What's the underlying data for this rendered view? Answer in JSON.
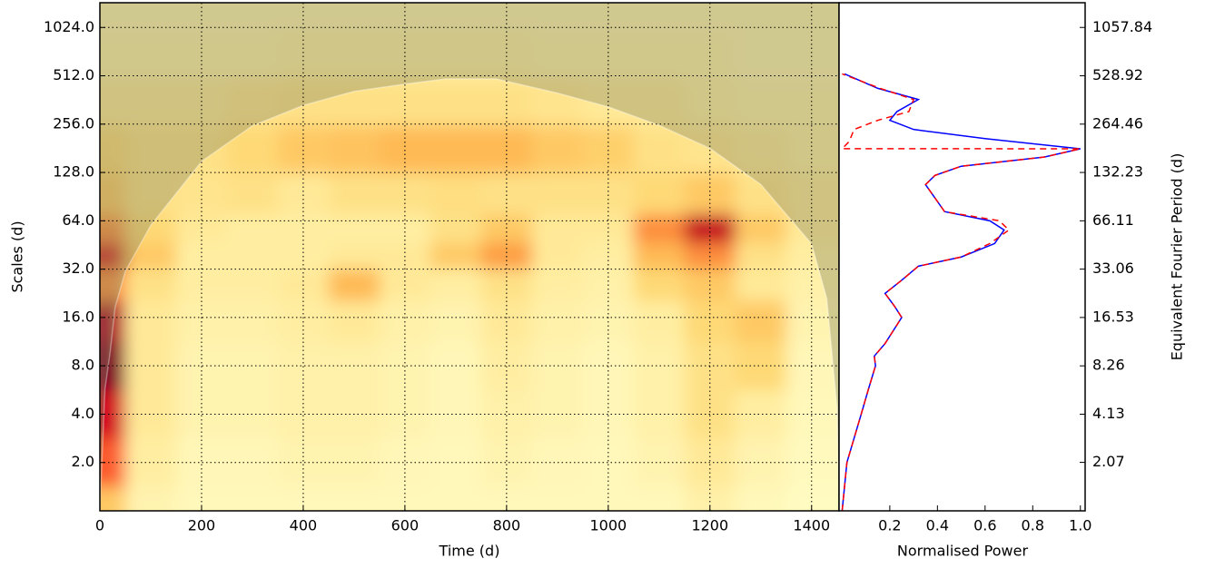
{
  "chart_data": [
    {
      "type": "heatmap",
      "xlabel": "Time (d)",
      "ylabel": "Scales (d)",
      "xlim": [
        0,
        1454
      ],
      "ylim": [
        1,
        1460
      ],
      "log_y": true,
      "grid": true,
      "colormap": "YlOrRd",
      "xticks": [
        0,
        200,
        400,
        600,
        800,
        1000,
        1200,
        1400
      ],
      "yticks": [
        {
          "value": 2,
          "label": "2.0"
        },
        {
          "value": 4,
          "label": "4.0"
        },
        {
          "value": 8,
          "label": "8.0"
        },
        {
          "value": 16,
          "label": "16.0"
        },
        {
          "value": 32,
          "label": "32.0"
        },
        {
          "value": 64,
          "label": "64.0"
        },
        {
          "value": 128,
          "label": "128.0"
        },
        {
          "value": 256,
          "label": "256.0"
        },
        {
          "value": 512,
          "label": "512.0"
        },
        {
          "value": 1024,
          "label": "1024.0"
        }
      ],
      "x": [
        0,
        100,
        200,
        300,
        400,
        500,
        600,
        700,
        800,
        900,
        1000,
        1100,
        1200,
        1300,
        1400
      ],
      "y": [
        1,
        2,
        4,
        8,
        16,
        26,
        40,
        55,
        90,
        180,
        350,
        700,
        1400
      ],
      "values": [
        [
          0.3,
          0.08,
          0.05,
          0.05,
          0.05,
          0.05,
          0.05,
          0.05,
          0.05,
          0.05,
          0.05,
          0.05,
          0.1,
          0.05,
          0.03
        ],
        [
          0.6,
          0.12,
          0.06,
          0.06,
          0.08,
          0.08,
          0.06,
          0.05,
          0.08,
          0.06,
          0.05,
          0.08,
          0.15,
          0.08,
          0.04
        ],
        [
          0.8,
          0.15,
          0.08,
          0.08,
          0.1,
          0.1,
          0.08,
          0.06,
          0.1,
          0.08,
          0.06,
          0.1,
          0.2,
          0.12,
          0.05
        ],
        [
          1.0,
          0.15,
          0.08,
          0.08,
          0.1,
          0.1,
          0.08,
          0.06,
          0.12,
          0.08,
          0.06,
          0.1,
          0.2,
          0.25,
          0.06
        ],
        [
          0.9,
          0.15,
          0.1,
          0.1,
          0.12,
          0.15,
          0.1,
          0.08,
          0.15,
          0.1,
          0.08,
          0.12,
          0.25,
          0.3,
          0.08
        ],
        [
          0.5,
          0.2,
          0.12,
          0.12,
          0.15,
          0.35,
          0.15,
          0.12,
          0.2,
          0.12,
          0.1,
          0.25,
          0.3,
          0.15,
          0.1
        ],
        [
          0.8,
          0.3,
          0.12,
          0.12,
          0.12,
          0.15,
          0.15,
          0.3,
          0.45,
          0.15,
          0.12,
          0.35,
          0.5,
          0.2,
          0.12
        ],
        [
          0.5,
          0.25,
          0.15,
          0.12,
          0.12,
          0.12,
          0.12,
          0.2,
          0.3,
          0.15,
          0.15,
          0.5,
          0.85,
          0.3,
          0.15
        ],
        [
          0.3,
          0.2,
          0.18,
          0.2,
          0.15,
          0.2,
          0.2,
          0.22,
          0.2,
          0.2,
          0.2,
          0.25,
          0.3,
          0.2,
          0.15
        ],
        [
          0.25,
          0.2,
          0.2,
          0.25,
          0.3,
          0.32,
          0.35,
          0.35,
          0.35,
          0.3,
          0.28,
          0.2,
          0.18,
          0.15,
          0.12
        ],
        [
          0.15,
          0.15,
          0.15,
          0.18,
          0.2,
          0.2,
          0.2,
          0.2,
          0.2,
          0.18,
          0.15,
          0.15,
          0.12,
          0.1,
          0.1
        ],
        [
          0.1,
          0.1,
          0.1,
          0.1,
          0.12,
          0.12,
          0.12,
          0.12,
          0.12,
          0.1,
          0.1,
          0.1,
          0.1,
          0.08,
          0.08
        ],
        [
          0.08,
          0.08,
          0.08,
          0.08,
          0.08,
          0.08,
          0.08,
          0.08,
          0.08,
          0.08,
          0.08,
          0.08,
          0.08,
          0.08,
          0.08
        ]
      ],
      "coi": {
        "color": "#8a8a60",
        "x": [
          0,
          10,
          20,
          30,
          50,
          100,
          200,
          300,
          400,
          500,
          600,
          680,
          780,
          900,
          1000,
          1100,
          1200,
          1300,
          1400,
          1430,
          1450,
          1454
        ],
        "y": [
          1,
          5.7,
          9.6,
          18.5,
          31,
          60,
          150,
          250,
          335,
          410,
          455,
          490,
          490,
          400,
          328,
          252,
          181,
          108,
          46,
          21,
          4.4,
          1
        ]
      }
    },
    {
      "type": "line",
      "xlabel": "Normalised Power",
      "y2label": "Equivalent Fourier Period (d)",
      "xlim": [
        -0.013,
        1.02
      ],
      "ylim": [
        1,
        1460
      ],
      "log_y": true,
      "y2lim": [
        1.033,
        1508
      ],
      "xticks": [
        0.2,
        0.4,
        0.6,
        0.8,
        {
          "value": 1,
          "label": "1.0"
        }
      ],
      "y2ticks": [
        2.07,
        4.13,
        8.26,
        16.53,
        33.06,
        66.11,
        132.23,
        264.46,
        528.92,
        1057.84
      ],
      "series": [
        {
          "color": "#0000ff",
          "style": "solid",
          "y": [
            1,
            2,
            4,
            5.7,
            8,
            9.2,
            11,
            16,
            18.8,
            22.6,
            27.3,
            33.4,
            38.1,
            46.2,
            56.1,
            64,
            73,
            88.6,
            107.6,
            122.8,
            140,
            159.8,
            179.8,
            207.9,
            237.2,
            270.6,
            306.5,
            364.5,
            427.5,
            526.2
          ],
          "values": [
            0,
            0.02,
            0.08,
            0.11,
            0.14,
            0.135,
            0.18,
            0.25,
            0.22,
            0.18,
            0.25,
            0.32,
            0.5,
            0.64,
            0.68,
            0.62,
            0.43,
            0.39,
            0.35,
            0.39,
            0.5,
            0.85,
            1.0,
            0.6,
            0.3,
            0.2,
            0.23,
            0.32,
            0.15,
            0.01
          ]
        },
        {
          "color": "#ff0000",
          "style": "dashed",
          "y": [
            1,
            2,
            4,
            5.7,
            8,
            9.2,
            11,
            16,
            18.8,
            22.6,
            27.3,
            33.4,
            38.1,
            46.2,
            56.1,
            64,
            73,
            88.6,
            107.6,
            122.8,
            140,
            159.8,
            179.8,
            180,
            200,
            237.2,
            270.6,
            306.5,
            364.5,
            427.5,
            526.2
          ],
          "values": [
            0,
            0.02,
            0.08,
            0.11,
            0.14,
            0.135,
            0.18,
            0.25,
            0.22,
            0.18,
            0.25,
            0.32,
            0.5,
            0.62,
            0.7,
            0.66,
            0.43,
            0.39,
            0.35,
            0.39,
            0.5,
            0.85,
            1.0,
            0,
            0.03,
            0.05,
            0.15,
            0.28,
            0.3,
            0.16,
            0
          ]
        }
      ]
    }
  ]
}
